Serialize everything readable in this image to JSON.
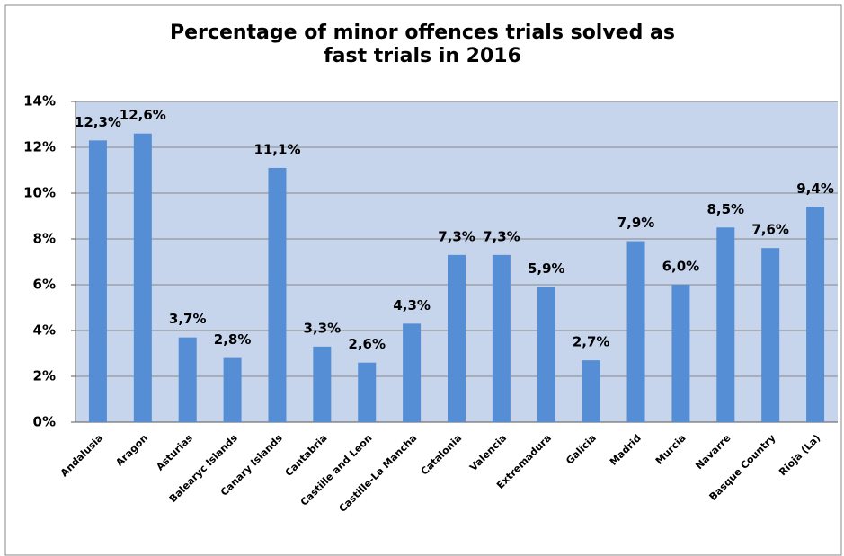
{
  "chart_data": {
    "type": "bar",
    "title": "Percentage of minor offences trials solved as fast trials in 2016",
    "categories": [
      "Andalusia",
      "Aragon",
      "Asturias",
      "Balearyc Islands",
      "Canary Islands",
      "Cantabria",
      "Castille and Leon",
      "Castille-La Mancha",
      "Catalonia",
      "Valencia",
      "Extremadura",
      "Galicia",
      "Madrid",
      "Murcia",
      "Navarre",
      "Basque Country",
      "Rioja (La)"
    ],
    "values": [
      12.3,
      12.6,
      3.7,
      2.8,
      11.1,
      3.3,
      2.6,
      4.3,
      7.3,
      7.3,
      5.9,
      2.7,
      7.9,
      6.0,
      8.5,
      7.6,
      9.4
    ],
    "value_labels": [
      "12,3%",
      "12,6%",
      "3,7%",
      "2,8%",
      "11,1%",
      "3,3%",
      "2,6%",
      "4,3%",
      "7,3%",
      "7,3%",
      "5,9%",
      "2,7%",
      "7,9%",
      "6,0%",
      "8,5%",
      "7,6%",
      "9,4%"
    ],
    "color": "#558ed5",
    "ylim": [
      0,
      14
    ],
    "yticks": [
      {
        "value": 0,
        "label": "0%"
      },
      {
        "value": 2,
        "label": "2%"
      },
      {
        "value": 4,
        "label": "4%"
      },
      {
        "value": 6,
        "label": "6%"
      },
      {
        "value": 8,
        "label": "8%"
      },
      {
        "value": 10,
        "label": "10%"
      },
      {
        "value": 12,
        "label": "12%"
      },
      {
        "value": 14,
        "label": "14%"
      }
    ],
    "grid": true
  }
}
